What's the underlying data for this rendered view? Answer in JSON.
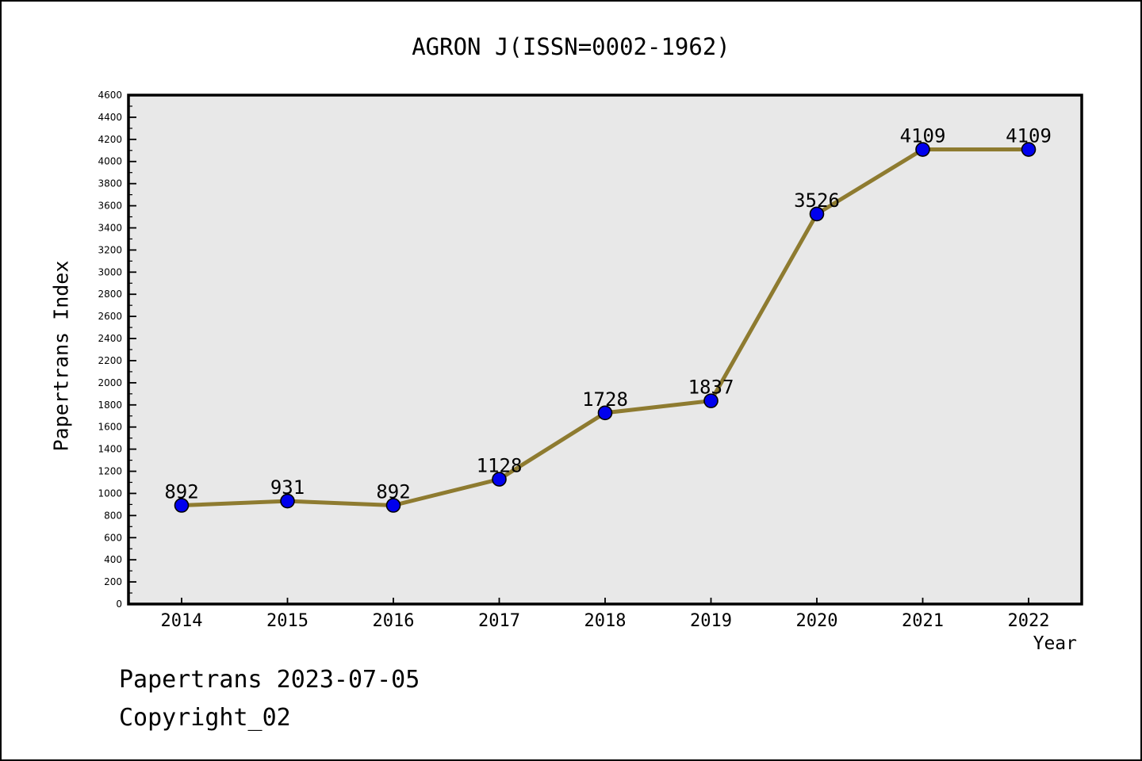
{
  "title": "AGRON J(ISSN=0002-1962)",
  "footer": {
    "line1": "Papertrans 2023-07-05",
    "line2": "Copyright_02"
  },
  "chart_data": {
    "type": "line",
    "title": "AGRON J(ISSN=0002-1962)",
    "x": [
      2014,
      2015,
      2016,
      2017,
      2018,
      2019,
      2020,
      2021,
      2022
    ],
    "values": [
      892,
      931,
      892,
      1128,
      1728,
      1837,
      3526,
      4109,
      4109
    ],
    "data_labels": [
      "892",
      "931",
      "892",
      "1128",
      "1728",
      "1837",
      "3526",
      "4109",
      "4109"
    ],
    "xlabel": "Year",
    "ylabel": "Papertrans Index",
    "ylim": [
      0,
      4600
    ],
    "ytick_major_step": 200,
    "ytick_minor_step": 100,
    "grid": false,
    "legend": "none",
    "colors": {
      "line": "#8E7B30",
      "marker_fill": "#0000EE",
      "marker_edge": "#000000",
      "plot_background": "#E8E8E8",
      "frame": "#000000",
      "text": "#000000"
    }
  }
}
